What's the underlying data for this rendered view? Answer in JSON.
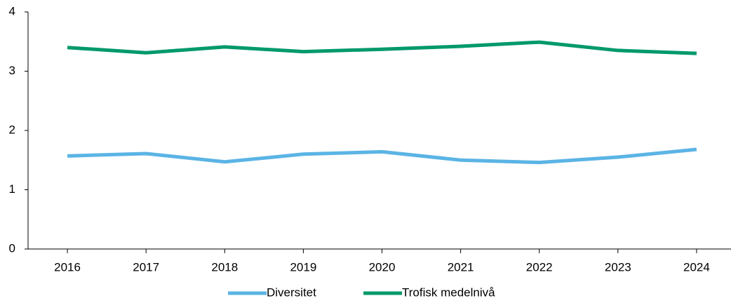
{
  "chart_data": {
    "type": "line",
    "categories": [
      "2016",
      "2017",
      "2018",
      "2019",
      "2020",
      "2021",
      "2022",
      "2023",
      "2024"
    ],
    "series": [
      {
        "name": "Diversitet",
        "color": "#5bb4e5",
        "values": [
          1.57,
          1.61,
          1.47,
          1.6,
          1.64,
          1.5,
          1.46,
          1.55,
          1.68
        ]
      },
      {
        "name": "Trofisk medelnivå",
        "color": "#00996b",
        "values": [
          3.4,
          3.31,
          3.41,
          3.33,
          3.37,
          3.42,
          3.49,
          3.35,
          3.3
        ]
      }
    ],
    "ylim": [
      0,
      4
    ],
    "yticks": [
      0,
      1,
      2,
      3,
      4
    ],
    "grid": false,
    "legend": "bottom"
  }
}
